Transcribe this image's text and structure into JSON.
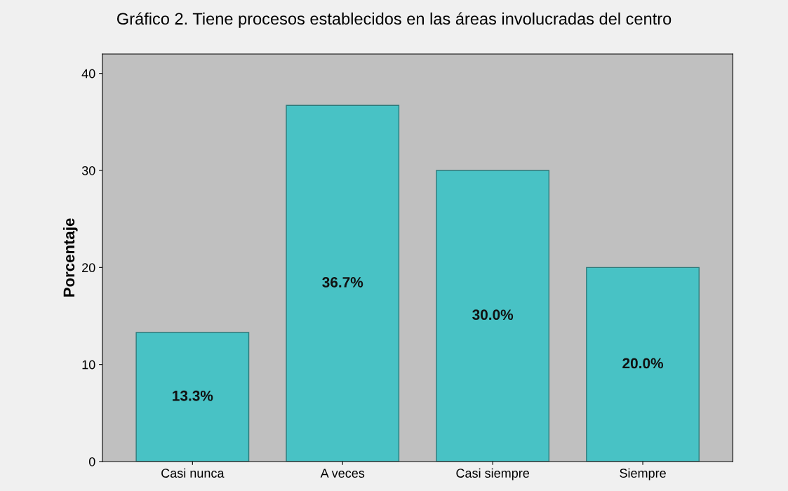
{
  "chart_data": {
    "type": "bar",
    "title": "Gráfico 2. Tiene procesos establecidos en las áreas involucradas del centro",
    "ylabel": "Porcentaje",
    "categories": [
      "Casi nunca",
      "A veces",
      "Casi siempre",
      "Siempre"
    ],
    "values": [
      13.3,
      36.7,
      30.0,
      20.0
    ],
    "color": "#48c2c5",
    "value_labels": [
      "13.3%",
      "36.7%",
      "30.0%",
      "20.0%"
    ],
    "ylim": [
      0,
      42
    ],
    "yticks": [
      0,
      10,
      20,
      30,
      40
    ],
    "grid": false
  }
}
